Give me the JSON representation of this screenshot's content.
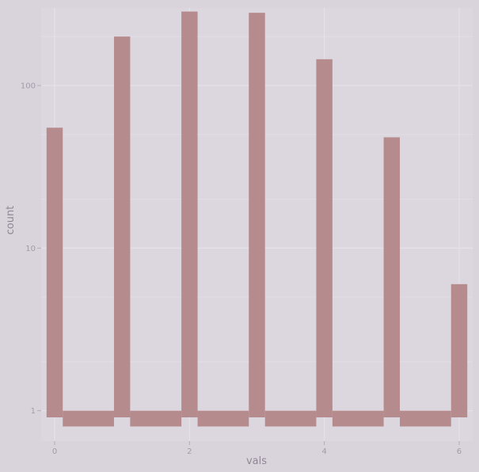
{
  "chart_data": {
    "type": "bar",
    "xlabel": "vals",
    "ylabel": "count",
    "y_scale": "log10",
    "ylim": [
      0.65,
      300
    ],
    "xlim": [
      -0.2,
      6.2
    ],
    "x_ticks": [
      {
        "value": 0,
        "label": "0"
      },
      {
        "value": 2,
        "label": "2"
      },
      {
        "value": 4,
        "label": "4"
      },
      {
        "value": 6,
        "label": "6"
      }
    ],
    "y_ticks": [
      {
        "value": 1,
        "label": "1"
      },
      {
        "value": 10,
        "label": "10"
      },
      {
        "value": 100,
        "label": "100"
      }
    ],
    "grid": true,
    "bar_color": "#b58b8d",
    "background_color": "#dcd6de",
    "grid_color": "#e6e1e8",
    "bars": [
      {
        "x": 0,
        "count": 55
      },
      {
        "x": 1,
        "count": 200
      },
      {
        "x": 2,
        "count": 285
      },
      {
        "x": 3,
        "count": 280
      },
      {
        "x": 4,
        "count": 145
      },
      {
        "x": 5,
        "count": 48
      },
      {
        "x": 6,
        "count": 6
      }
    ],
    "between_bars": [
      {
        "x": 0.5,
        "count": 0.8
      },
      {
        "x": 1.5,
        "count": 0.8
      },
      {
        "x": 2.5,
        "count": 0.8
      },
      {
        "x": 3.5,
        "count": 0.8
      },
      {
        "x": 4.5,
        "count": 0.8
      },
      {
        "x": 5.5,
        "count": 0.8
      }
    ]
  }
}
